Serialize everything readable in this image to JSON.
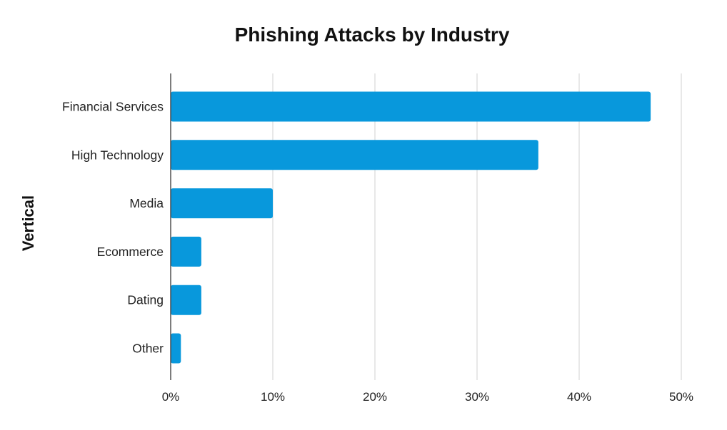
{
  "chart_data": {
    "type": "bar",
    "orientation": "horizontal",
    "title": "Phishing Attacks by Industry",
    "xlabel": "",
    "ylabel": "Vertical",
    "categories": [
      "Financial Services",
      "High Technology",
      "Media",
      "Ecommerce",
      "Dating",
      "Other"
    ],
    "values": [
      47,
      36,
      10,
      3,
      3,
      1
    ],
    "xlim": [
      0,
      50
    ],
    "xticks": [
      0,
      10,
      20,
      30,
      40,
      50
    ],
    "xtick_labels": [
      "0%",
      "10%",
      "20%",
      "30%",
      "40%",
      "50%"
    ],
    "grid": true,
    "legend": "none",
    "bar_color": "#0898dc"
  }
}
